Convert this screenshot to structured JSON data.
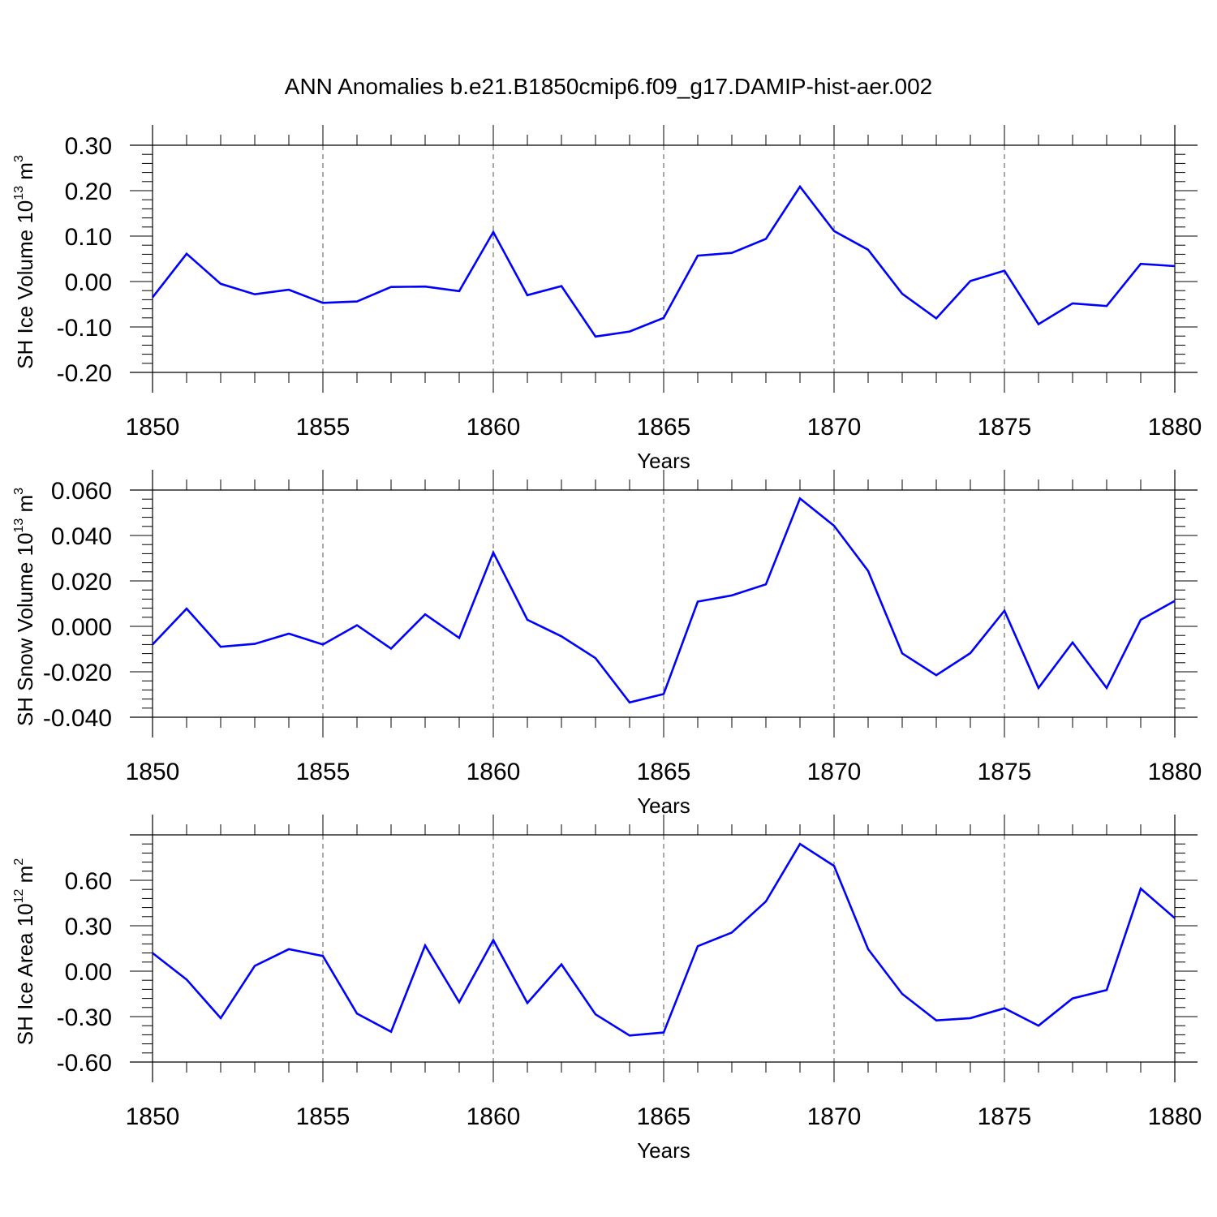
{
  "chart_data": [
    {
      "type": "line",
      "title": "ANN Anomalies b.e21.B1850cmip6.f09_g17.DAMIP-hist-aer.002",
      "xlabel": "Years",
      "ylabel": {
        "text": "SH Ice Volume 10",
        "exp": "13",
        "unit": " m",
        "unit_exp": "3"
      },
      "xlim": [
        1850,
        1880
      ],
      "ylim": [
        -0.2,
        0.3
      ],
      "x_ticks": [
        "1850",
        "1855",
        "1860",
        "1865",
        "1870",
        "1875",
        "1880"
      ],
      "y_ticks": [
        {
          "value": 0.3,
          "label": "0.30"
        },
        {
          "value": 0.2,
          "label": "0.20"
        },
        {
          "value": 0.1,
          "label": "0.10"
        },
        {
          "value": 0.0,
          "label": "0.00"
        },
        {
          "value": -0.1,
          "label": "-0.10"
        },
        {
          "value": -0.2,
          "label": "-0.20"
        }
      ],
      "grid": "vertical dashed at major x ticks",
      "line_color": "#0000ff",
      "series": [
        {
          "x": [
            1850,
            1851,
            1852,
            1853,
            1854,
            1855,
            1856,
            1857,
            1858,
            1859,
            1860,
            1861,
            1862,
            1863,
            1864,
            1865,
            1866,
            1867,
            1868,
            1869,
            1870,
            1871,
            1872,
            1873,
            1874,
            1875,
            1876,
            1877,
            1878,
            1879,
            1880
          ],
          "values": [
            -0.035,
            0.061,
            -0.005,
            -0.028,
            -0.018,
            -0.047,
            -0.044,
            -0.012,
            -0.011,
            -0.021,
            0.109,
            -0.03,
            -0.01,
            -0.121,
            -0.11,
            -0.08,
            0.057,
            0.063,
            0.094,
            0.209,
            0.111,
            0.07,
            -0.027,
            -0.081,
            0.001,
            0.024,
            -0.094,
            -0.048,
            -0.054,
            0.039,
            0.034
          ]
        }
      ]
    },
    {
      "type": "line",
      "xlabel": "Years",
      "ylabel": {
        "text": "SH Snow Volume 10",
        "exp": "13",
        "unit": " m",
        "unit_exp": "3"
      },
      "xlim": [
        1850,
        1880
      ],
      "ylim": [
        -0.04,
        0.06
      ],
      "x_ticks": [
        "1850",
        "1855",
        "1860",
        "1865",
        "1870",
        "1875",
        "1880"
      ],
      "y_ticks": [
        {
          "value": 0.06,
          "label": "0.060"
        },
        {
          "value": 0.04,
          "label": "0.040"
        },
        {
          "value": 0.02,
          "label": "0.020"
        },
        {
          "value": 0.0,
          "label": "0.000"
        },
        {
          "value": -0.02,
          "label": "-0.020"
        },
        {
          "value": -0.04,
          "label": "-0.040"
        }
      ],
      "grid": "vertical dashed at major x ticks",
      "line_color": "#0000ff",
      "series": [
        {
          "x": [
            1850,
            1851,
            1852,
            1853,
            1854,
            1855,
            1856,
            1857,
            1858,
            1859,
            1860,
            1861,
            1862,
            1863,
            1864,
            1865,
            1866,
            1867,
            1868,
            1869,
            1870,
            1871,
            1872,
            1873,
            1874,
            1875,
            1876,
            1877,
            1878,
            1879,
            1880
          ],
          "values": [
            -0.008,
            0.0078,
            -0.009,
            -0.0077,
            -0.0032,
            -0.008,
            0.0005,
            -0.0098,
            0.0053,
            -0.0051,
            0.0325,
            0.0029,
            -0.0044,
            -0.014,
            -0.0335,
            -0.0298,
            0.0109,
            0.0136,
            0.0185,
            0.0563,
            0.0443,
            0.0244,
            -0.0119,
            -0.0215,
            -0.0118,
            0.0069,
            -0.0271,
            -0.0071,
            -0.0271,
            0.0029,
            0.0112
          ]
        }
      ]
    },
    {
      "type": "line",
      "xlabel": "Years",
      "ylabel": {
        "text": "SH Ice Area 10",
        "exp": "12",
        "unit": " m",
        "unit_exp": "2"
      },
      "xlim": [
        1850,
        1880
      ],
      "ylim": [
        -0.6,
        0.9
      ],
      "x_ticks": [
        "1850",
        "1855",
        "1860",
        "1865",
        "1870",
        "1875",
        "1880"
      ],
      "y_ticks": [
        {
          "value": 0.6,
          "label": "0.60"
        },
        {
          "value": 0.3,
          "label": "0.30"
        },
        {
          "value": 0.0,
          "label": "0.00"
        },
        {
          "value": -0.3,
          "label": "-0.30"
        },
        {
          "value": -0.6,
          "label": "-0.60"
        }
      ],
      "grid": "vertical dashed at major x ticks",
      "line_color": "#0000ff",
      "series": [
        {
          "x": [
            1850,
            1851,
            1852,
            1853,
            1854,
            1855,
            1856,
            1857,
            1858,
            1859,
            1860,
            1861,
            1862,
            1863,
            1864,
            1865,
            1866,
            1867,
            1868,
            1869,
            1870,
            1871,
            1872,
            1873,
            1874,
            1875,
            1876,
            1877,
            1878,
            1879,
            1880
          ],
          "values": [
            0.12,
            -0.055,
            -0.31,
            0.035,
            0.145,
            0.1,
            -0.28,
            -0.4,
            0.17,
            -0.205,
            0.205,
            -0.21,
            0.045,
            -0.285,
            -0.425,
            -0.405,
            0.165,
            0.255,
            0.46,
            0.84,
            0.695,
            0.145,
            -0.15,
            -0.325,
            -0.31,
            -0.245,
            -0.36,
            -0.18,
            -0.125,
            0.545,
            0.35
          ]
        }
      ]
    }
  ]
}
